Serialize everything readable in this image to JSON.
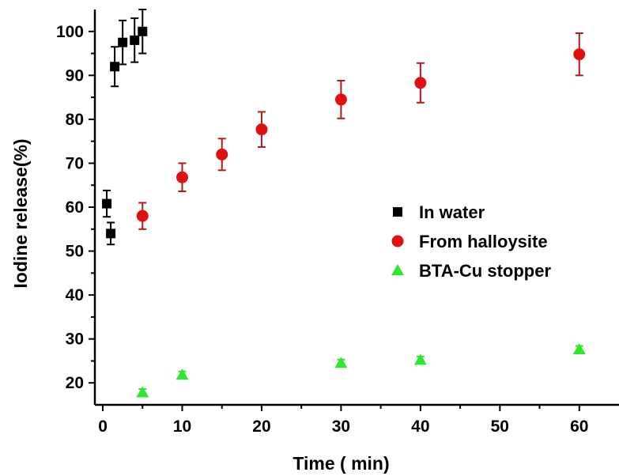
{
  "chart_data": {
    "type": "scatter",
    "xlabel": "Time ( min)",
    "ylabel": "Iodine release(%)",
    "xlim": [
      -1,
      65
    ],
    "ylim": [
      15,
      105
    ],
    "x_ticks": [
      0,
      10,
      20,
      30,
      40,
      50,
      60
    ],
    "y_ticks": [
      20,
      30,
      40,
      50,
      60,
      70,
      80,
      90,
      100
    ],
    "grid": false,
    "legend_position": "center-right",
    "series": [
      {
        "name": "In water",
        "marker": "square",
        "color": "#000000",
        "error_color": "#000000",
        "points": [
          {
            "x": 0.5,
            "y": 60.8,
            "err": 3.0
          },
          {
            "x": 1.0,
            "y": 54.0,
            "err": 2.5
          },
          {
            "x": 1.5,
            "y": 92.0,
            "err": 4.5
          },
          {
            "x": 2.5,
            "y": 97.5,
            "err": 5.0
          },
          {
            "x": 4.0,
            "y": 98.0,
            "err": 5.0
          },
          {
            "x": 5.0,
            "y": 100.0,
            "err": 5.0
          }
        ]
      },
      {
        "name": "From halloysite",
        "marker": "circle",
        "color": "#e01010",
        "error_color": "#b01a1a",
        "points": [
          {
            "x": 5,
            "y": 58.0,
            "err": 3.0
          },
          {
            "x": 10,
            "y": 66.8,
            "err": 3.2
          },
          {
            "x": 15,
            "y": 72.0,
            "err": 3.6
          },
          {
            "x": 20,
            "y": 77.7,
            "err": 4.0
          },
          {
            "x": 30,
            "y": 84.5,
            "err": 4.3
          },
          {
            "x": 40,
            "y": 88.3,
            "err": 4.5
          },
          {
            "x": 60,
            "y": 94.8,
            "err": 4.8
          }
        ]
      },
      {
        "name": "BTA-Cu stopper",
        "marker": "triangle",
        "color": "#2ee82e",
        "error_color": "#2ee82e",
        "points": [
          {
            "x": 5,
            "y": 17.8,
            "err": 0.8
          },
          {
            "x": 10,
            "y": 21.8,
            "err": 0.8
          },
          {
            "x": 30,
            "y": 24.5,
            "err": 0.8
          },
          {
            "x": 40,
            "y": 25.2,
            "err": 0.8
          },
          {
            "x": 60,
            "y": 27.6,
            "err": 0.8
          }
        ]
      }
    ]
  }
}
